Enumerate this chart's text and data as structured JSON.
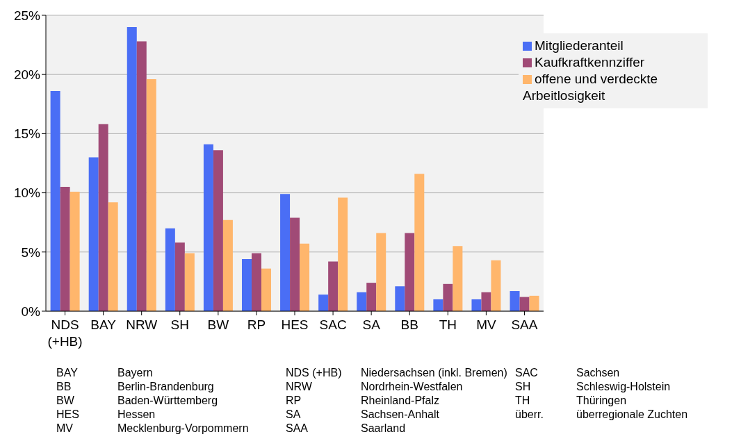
{
  "chart_data": {
    "type": "bar",
    "categories": [
      "NDS\n(+HB)",
      "BAY",
      "NRW",
      "SH",
      "BW",
      "RP",
      "HES",
      "SAC",
      "SA",
      "BB",
      "TH",
      "MV",
      "SAA"
    ],
    "series": [
      {
        "name": "Mitgliederanteil",
        "color": "#4a6ef5",
        "values": [
          18.6,
          13.0,
          24.0,
          7.0,
          14.1,
          4.4,
          9.9,
          1.4,
          1.6,
          2.1,
          1.0,
          1.0,
          1.7
        ]
      },
      {
        "name": "Kaufkraftkennziffer",
        "color": "#a04a76",
        "values": [
          10.5,
          15.8,
          22.8,
          5.8,
          13.6,
          4.9,
          7.9,
          4.2,
          2.4,
          6.6,
          2.3,
          1.6,
          1.2
        ]
      },
      {
        "name": "offene und verdeckte Arbeitlosigkeit",
        "color": "#ffb66c",
        "values": [
          10.1,
          9.2,
          19.6,
          4.9,
          7.7,
          3.6,
          5.7,
          9.6,
          6.6,
          11.6,
          5.5,
          4.3,
          1.3
        ]
      }
    ],
    "ylim": [
      0,
      25
    ],
    "yticks": [
      {
        "value": 0,
        "label": "0%"
      },
      {
        "value": 5,
        "label": "5%"
      },
      {
        "value": 10,
        "label": "10%"
      },
      {
        "value": 15,
        "label": "15%"
      },
      {
        "value": 20,
        "label": "20%"
      },
      {
        "value": 25,
        "label": "25%"
      }
    ],
    "grid": "y",
    "legend": "top right",
    "annotations": [
      "BAY\tBayern",
      "BB\tBerlin-Brandenburg",
      "BW\tBaden-Württemberg",
      "HES\tHessen",
      "MV\tMecklenburg-Vorpommern",
      "NDS (+HB)\tNiedersachsen (inkl. Bremen)",
      "NRW\tNordrhein-Westfalen",
      "RP\tRheinland-Pfalz",
      "SA\tSachsen-Anhalt",
      "SAA\tSaarland",
      "SAC\tSachsen",
      "SH\tSchleswig-Holstein",
      "TH\tThüringen",
      "überr.\tüberregionale Zuchten"
    ]
  }
}
